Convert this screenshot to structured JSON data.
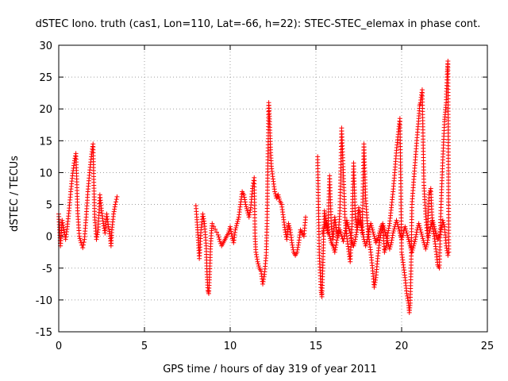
{
  "chart_data": {
    "type": "scatter",
    "title": "dSTEC Iono. truth (cas1, Lon=110, Lat=-66, h=22): STEC-STEC_elemax in phase cont.",
    "xlabel": "GPS time / hours of day 319 of year 2011",
    "ylabel": "dSTEC  / TECUs",
    "xlim": [
      0,
      25
    ],
    "ylim": [
      -15,
      30
    ],
    "xticks": [
      0,
      5,
      10,
      15,
      20,
      25
    ],
    "yticks": [
      -15,
      -10,
      -5,
      0,
      5,
      10,
      15,
      20,
      25,
      30
    ],
    "grid": true,
    "marker": "+",
    "color": "#ff0000",
    "segments": [
      [
        [
          0.0,
          3.5
        ],
        [
          0.05,
          1.0
        ],
        [
          0.1,
          -1.5
        ],
        [
          0.15,
          0.5
        ],
        [
          0.2,
          2.5
        ],
        [
          0.3,
          1.0
        ],
        [
          0.4,
          -0.5
        ],
        [
          0.5,
          1.5
        ],
        [
          0.6,
          4.0
        ],
        [
          0.7,
          7.0
        ],
        [
          0.8,
          9.5
        ],
        [
          0.9,
          11.5
        ],
        [
          1.0,
          13.0
        ],
        [
          1.05,
          9.0
        ],
        [
          1.1,
          4.0
        ],
        [
          1.2,
          0.0
        ],
        [
          1.3,
          -1.0
        ],
        [
          1.4,
          -1.8
        ],
        [
          1.5,
          -0.5
        ],
        [
          1.6,
          3.0
        ],
        [
          1.7,
          7.0
        ],
        [
          1.8,
          10.0
        ],
        [
          1.9,
          12.5
        ],
        [
          2.0,
          14.5
        ],
        [
          2.05,
          8.0
        ],
        [
          2.1,
          3.0
        ],
        [
          2.2,
          -0.5
        ],
        [
          2.3,
          1.0
        ],
        [
          2.4,
          6.5
        ],
        [
          2.5,
          4.0
        ],
        [
          2.6,
          2.0
        ],
        [
          2.7,
          0.5
        ],
        [
          2.8,
          3.5
        ],
        [
          2.9,
          1.5
        ],
        [
          3.0,
          0.0
        ],
        [
          3.05,
          -1.5
        ],
        [
          3.1,
          1.0
        ],
        [
          3.2,
          3.5
        ],
        [
          3.3,
          5.0
        ],
        [
          3.4,
          6.2
        ]
      ],
      [
        [
          8.0,
          4.8
        ],
        [
          8.05,
          3.0
        ],
        [
          8.1,
          1.0
        ],
        [
          8.15,
          -1.0
        ],
        [
          8.2,
          -3.5
        ],
        [
          8.3,
          1.0
        ],
        [
          8.4,
          3.5
        ],
        [
          8.5,
          2.0
        ],
        [
          8.6,
          -1.5
        ],
        [
          8.65,
          -6.0
        ],
        [
          8.7,
          -8.5
        ],
        [
          8.75,
          -9.0
        ],
        [
          8.8,
          -6.0
        ],
        [
          8.85,
          -2.0
        ],
        [
          8.9,
          0.5
        ],
        [
          8.95,
          2.0
        ],
        [
          9.3,
          0.2
        ],
        [
          9.4,
          -0.8
        ],
        [
          9.5,
          -1.5
        ],
        [
          9.6,
          -1.0
        ],
        [
          9.7,
          -0.5
        ],
        [
          9.8,
          0.0
        ],
        [
          9.9,
          0.5
        ],
        [
          10.0,
          1.5
        ],
        [
          10.1,
          0.0
        ],
        [
          10.2,
          -1.0
        ],
        [
          10.3,
          1.0
        ],
        [
          10.4,
          2.0
        ],
        [
          10.5,
          3.0
        ],
        [
          10.6,
          5.0
        ],
        [
          10.7,
          7.0
        ],
        [
          10.8,
          6.5
        ],
        [
          10.9,
          5.0
        ],
        [
          11.0,
          4.0
        ],
        [
          11.1,
          3.0
        ],
        [
          11.2,
          4.5
        ],
        [
          11.3,
          7.5
        ],
        [
          11.4,
          9.2
        ],
        [
          11.45,
          0.0
        ],
        [
          11.5,
          -2.5
        ],
        [
          11.6,
          -4.0
        ],
        [
          11.7,
          -5.0
        ],
        [
          11.8,
          -5.5
        ],
        [
          11.9,
          -7.5
        ],
        [
          12.0,
          -6.0
        ],
        [
          12.1,
          -3.0
        ],
        [
          12.15,
          2.0
        ],
        [
          12.2,
          12.0
        ],
        [
          12.25,
          21.0
        ],
        [
          12.3,
          18.0
        ],
        [
          12.35,
          14.0
        ],
        [
          12.4,
          11.0
        ],
        [
          12.5,
          9.0
        ],
        [
          12.6,
          7.0
        ],
        [
          12.7,
          6.0
        ],
        [
          12.8,
          6.5
        ],
        [
          12.9,
          5.5
        ],
        [
          13.0,
          5.0
        ],
        [
          13.1,
          3.0
        ],
        [
          13.2,
          1.0
        ],
        [
          13.3,
          -0.5
        ],
        [
          13.4,
          2.0
        ],
        [
          13.5,
          1.0
        ],
        [
          13.6,
          -1.0
        ],
        [
          13.7,
          -2.5
        ],
        [
          13.8,
          -3.0
        ],
        [
          13.9,
          -2.5
        ],
        [
          14.0,
          -1.0
        ],
        [
          14.1,
          1.0
        ],
        [
          14.2,
          0.5
        ],
        [
          14.3,
          0.0
        ],
        [
          14.4,
          3.0
        ]
      ],
      [
        [
          15.1,
          12.5
        ],
        [
          15.15,
          5.0
        ],
        [
          15.2,
          -3.0
        ],
        [
          15.3,
          -8.5
        ],
        [
          15.35,
          -9.5
        ],
        [
          15.4,
          -5.0
        ],
        [
          15.45,
          0.0
        ],
        [
          15.5,
          4.0
        ],
        [
          15.6,
          2.0
        ],
        [
          15.7,
          0.5
        ],
        [
          15.8,
          9.5
        ],
        [
          15.9,
          1.5
        ],
        [
          16.0,
          -0.5
        ],
        [
          16.1,
          3.0
        ],
        [
          16.2,
          1.0
        ],
        [
          16.3,
          0.0
        ],
        [
          16.4,
          4.0
        ],
        [
          16.5,
          17.0
        ],
        [
          16.6,
          10.0
        ],
        [
          16.7,
          2.5
        ],
        [
          16.8,
          0.0
        ],
        [
          16.9,
          -2.0
        ],
        [
          17.0,
          -4.0
        ],
        [
          17.1,
          1.5
        ],
        [
          17.2,
          11.5
        ],
        [
          17.3,
          3.0
        ],
        [
          17.4,
          1.0
        ],
        [
          17.5,
          4.5
        ],
        [
          17.6,
          3.0
        ],
        [
          17.7,
          0.5
        ],
        [
          17.8,
          14.5
        ],
        [
          17.9,
          6.0
        ],
        [
          18.0,
          2.0
        ],
        [
          18.1,
          -0.5
        ],
        [
          18.2,
          -2.5
        ],
        [
          18.3,
          -5.0
        ],
        [
          18.4,
          -8.0
        ],
        [
          18.5,
          -6.5
        ],
        [
          18.6,
          -3.5
        ],
        [
          18.7,
          -1.0
        ],
        [
          18.8,
          0.5
        ],
        [
          18.9,
          1.5
        ],
        [
          19.0,
          -2.5
        ],
        [
          19.1,
          -1.5
        ],
        [
          19.2,
          0.5
        ],
        [
          19.3,
          2.0
        ],
        [
          19.4,
          4.5
        ],
        [
          19.5,
          7.0
        ],
        [
          19.6,
          10.0
        ],
        [
          19.7,
          13.5
        ],
        [
          19.8,
          16.0
        ],
        [
          19.9,
          18.5
        ],
        [
          20.0,
          -2.5
        ],
        [
          20.1,
          -4.5
        ],
        [
          20.2,
          -6.5
        ],
        [
          20.3,
          -9.0
        ],
        [
          20.4,
          -10.5
        ],
        [
          20.45,
          -12.0
        ],
        [
          20.5,
          -10.5
        ],
        [
          20.55,
          -5.0
        ],
        [
          20.6,
          5.0
        ],
        [
          20.7,
          8.5
        ],
        [
          20.8,
          12.0
        ],
        [
          20.9,
          15.5
        ],
        [
          21.0,
          18.5
        ],
        [
          21.05,
          20.5
        ],
        [
          21.1,
          21.0
        ],
        [
          21.2,
          23.0
        ],
        [
          21.3,
          8.0
        ],
        [
          21.4,
          3.5
        ],
        [
          21.5,
          0.0
        ],
        [
          21.6,
          6.5
        ],
        [
          21.7,
          7.5
        ],
        [
          21.8,
          1.5
        ],
        [
          21.9,
          0.0
        ],
        [
          22.0,
          -2.0
        ],
        [
          22.1,
          -4.5
        ],
        [
          22.2,
          -5.0
        ],
        [
          22.3,
          5.0
        ],
        [
          22.4,
          12.0
        ],
        [
          22.5,
          18.0
        ],
        [
          22.55,
          19.5
        ],
        [
          22.6,
          21.0
        ],
        [
          22.65,
          25.0
        ],
        [
          22.7,
          27.5
        ],
        [
          22.75,
          -2.5
        ]
      ],
      [
        [
          15.4,
          0.5
        ],
        [
          15.5,
          1.5
        ],
        [
          15.6,
          2.5
        ],
        [
          15.7,
          1.0
        ],
        [
          15.8,
          0.0
        ],
        [
          15.9,
          -1.0
        ],
        [
          16.0,
          -1.5
        ],
        [
          16.1,
          -2.5
        ],
        [
          16.2,
          -1.0
        ],
        [
          16.3,
          0.5
        ],
        [
          16.4,
          1.0
        ],
        [
          16.5,
          0.0
        ],
        [
          16.6,
          -0.8
        ],
        [
          16.7,
          0.5
        ],
        [
          16.8,
          2.5
        ],
        [
          16.9,
          1.5
        ],
        [
          17.0,
          0.5
        ],
        [
          17.1,
          -1.0
        ],
        [
          17.2,
          -1.5
        ],
        [
          17.3,
          -0.5
        ],
        [
          17.4,
          1.0
        ],
        [
          17.5,
          2.5
        ],
        [
          17.6,
          2.0
        ],
        [
          17.7,
          1.0
        ],
        [
          17.8,
          -0.5
        ],
        [
          17.9,
          -1.5
        ],
        [
          18.0,
          -0.5
        ],
        [
          18.1,
          1.0
        ],
        [
          18.2,
          2.0
        ],
        [
          18.3,
          1.0
        ],
        [
          18.4,
          0.0
        ],
        [
          18.5,
          -1.0
        ],
        [
          18.6,
          -0.5
        ],
        [
          18.7,
          0.5
        ],
        [
          18.8,
          1.5
        ],
        [
          18.9,
          2.0
        ],
        [
          19.0,
          1.0
        ],
        [
          19.1,
          0.0
        ],
        [
          19.2,
          -1.0
        ],
        [
          19.3,
          -2.0
        ],
        [
          19.4,
          -1.0
        ],
        [
          19.5,
          0.5
        ],
        [
          19.6,
          1.5
        ],
        [
          19.7,
          2.5
        ],
        [
          19.8,
          1.5
        ],
        [
          19.9,
          0.5
        ],
        [
          20.0,
          -0.5
        ],
        [
          20.1,
          0.5
        ],
        [
          20.2,
          1.5
        ],
        [
          20.3,
          0.5
        ],
        [
          20.4,
          -0.5
        ],
        [
          20.5,
          -1.5
        ],
        [
          20.6,
          -2.5
        ],
        [
          20.7,
          -1.5
        ],
        [
          20.8,
          -0.5
        ],
        [
          20.9,
          1.0
        ],
        [
          21.0,
          2.0
        ],
        [
          21.1,
          1.0
        ],
        [
          21.2,
          0.0
        ],
        [
          21.3,
          -1.0
        ],
        [
          21.4,
          -2.0
        ],
        [
          21.5,
          -1.0
        ],
        [
          21.6,
          0.5
        ],
        [
          21.7,
          1.5
        ],
        [
          21.8,
          2.5
        ],
        [
          21.9,
          1.5
        ],
        [
          22.0,
          0.5
        ],
        [
          22.1,
          -0.5
        ],
        [
          22.2,
          0.0
        ],
        [
          22.3,
          1.0
        ],
        [
          22.4,
          2.5
        ],
        [
          22.5,
          1.5
        ],
        [
          22.6,
          -1.5
        ],
        [
          22.7,
          -3.0
        ]
      ]
    ]
  }
}
